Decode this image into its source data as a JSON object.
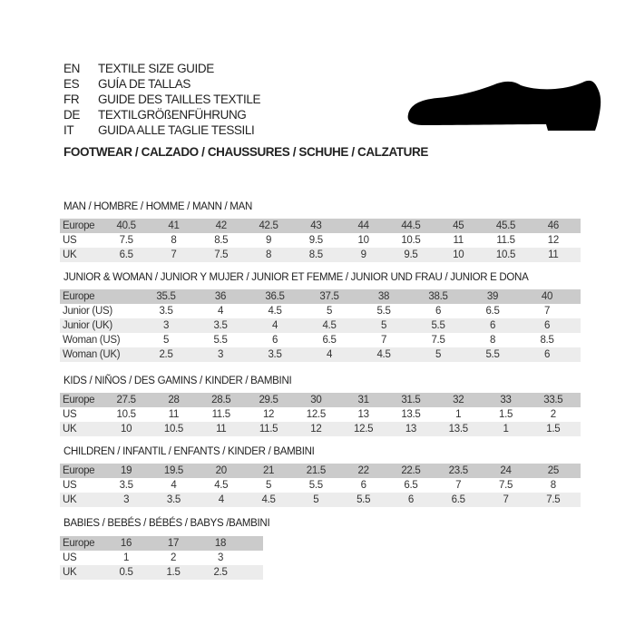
{
  "header": {
    "lines": [
      {
        "code": "EN",
        "text": "TEXTILE SIZE GUIDE"
      },
      {
        "code": "ES",
        "text": "GUÍA DE TALLAS"
      },
      {
        "code": "FR",
        "text": "GUIDE DES TAILLES TEXTILE"
      },
      {
        "code": "DE",
        "text": "TEXTILGRÖßENFÜHRUNG"
      },
      {
        "code": "IT",
        "text": "GUIDA ALLE TAGLIE TESSILI"
      }
    ],
    "footwear": "FOOTWEAR / CALZADO / CHAUSSURES / SCHUHE / CALZATURE",
    "icon": "shoe-icon"
  },
  "colors": {
    "header_row": "#cbcbcb",
    "alt_row": "#ececec"
  },
  "sections": [
    {
      "title": "MAN / HOMBRE / HOMME / MANN / MAN",
      "rows": [
        {
          "label": "Europe",
          "values": [
            "40.5",
            "41",
            "42",
            "42.5",
            "43",
            "44",
            "44.5",
            "45",
            "45.5",
            "46"
          ]
        },
        {
          "label": "US",
          "values": [
            "7.5",
            "8",
            "8.5",
            "9",
            "9.5",
            "10",
            "10.5",
            "11",
            "11.5",
            "12"
          ]
        },
        {
          "label": "UK",
          "values": [
            "6.5",
            "7",
            "7.5",
            "8",
            "8.5",
            "9",
            "9.5",
            "10",
            "10.5",
            "11"
          ]
        }
      ]
    },
    {
      "title": "JUNIOR & WOMAN / JUNIOR Y MUJER / JUNIOR ET FEMME / JUNIOR UND FRAU / JUNIOR E DONA",
      "rows": [
        {
          "label": "Europe",
          "values": [
            "35.5",
            "36",
            "36.5",
            "37.5",
            "38",
            "38.5",
            "39",
            "40"
          ]
        },
        {
          "label": "Junior (US)",
          "values": [
            "3.5",
            "4",
            "4.5",
            "5",
            "5.5",
            "6",
            "6.5",
            "7"
          ]
        },
        {
          "label": "Junior (UK)",
          "values": [
            "3",
            "3.5",
            "4",
            "4.5",
            "5",
            "5.5",
            "6",
            "6"
          ]
        },
        {
          "label": "Woman (US)",
          "values": [
            "5",
            "5.5",
            "6",
            "6.5",
            "7",
            "7.5",
            "8",
            "8.5"
          ]
        },
        {
          "label": "Woman (UK)",
          "values": [
            "2.5",
            "3",
            "3.5",
            "4",
            "4.5",
            "5",
            "5.5",
            "6"
          ]
        }
      ]
    },
    {
      "title": "KIDS / NIÑOS / DES GAMINS / KINDER / BAMBINI",
      "rows": [
        {
          "label": "Europe",
          "values": [
            "27.5",
            "28",
            "28.5",
            "29.5",
            "30",
            "31",
            "31.5",
            "32",
            "33",
            "33.5"
          ]
        },
        {
          "label": "US",
          "values": [
            "10.5",
            "11",
            "11.5",
            "12",
            "12.5",
            "13",
            "13.5",
            "1",
            "1.5",
            "2"
          ]
        },
        {
          "label": "UK",
          "values": [
            "10",
            "10.5",
            "11",
            "11.5",
            "12",
            "12.5",
            "13",
            "13.5",
            "1",
            "1.5"
          ]
        }
      ]
    },
    {
      "title": "CHILDREN / INFANTIL / ENFANTS / KINDER / BAMBINI",
      "rows": [
        {
          "label": "Europe",
          "values": [
            "19",
            "19.5",
            "20",
            "21",
            "21.5",
            "22",
            "22.5",
            "23.5",
            "24",
            "25"
          ]
        },
        {
          "label": "US",
          "values": [
            "3.5",
            "4",
            "4.5",
            "5",
            "5.5",
            "6",
            "6.5",
            "7",
            "7.5",
            "8"
          ]
        },
        {
          "label": "UK",
          "values": [
            "3",
            "3.5",
            "4",
            "4.5",
            "5",
            "5.5",
            "6",
            "6.5",
            "7",
            "7.5"
          ]
        }
      ]
    },
    {
      "title": "BABIES  / BEBÉS / BÉBÉS / BABYS /BAMBINI",
      "rows": [
        {
          "label": "Europe",
          "values": [
            "16",
            "17",
            "18"
          ]
        },
        {
          "label": "US",
          "values": [
            "1",
            "2",
            "3"
          ]
        },
        {
          "label": "UK",
          "values": [
            "0.5",
            "1.5",
            "2.5"
          ]
        }
      ]
    }
  ]
}
